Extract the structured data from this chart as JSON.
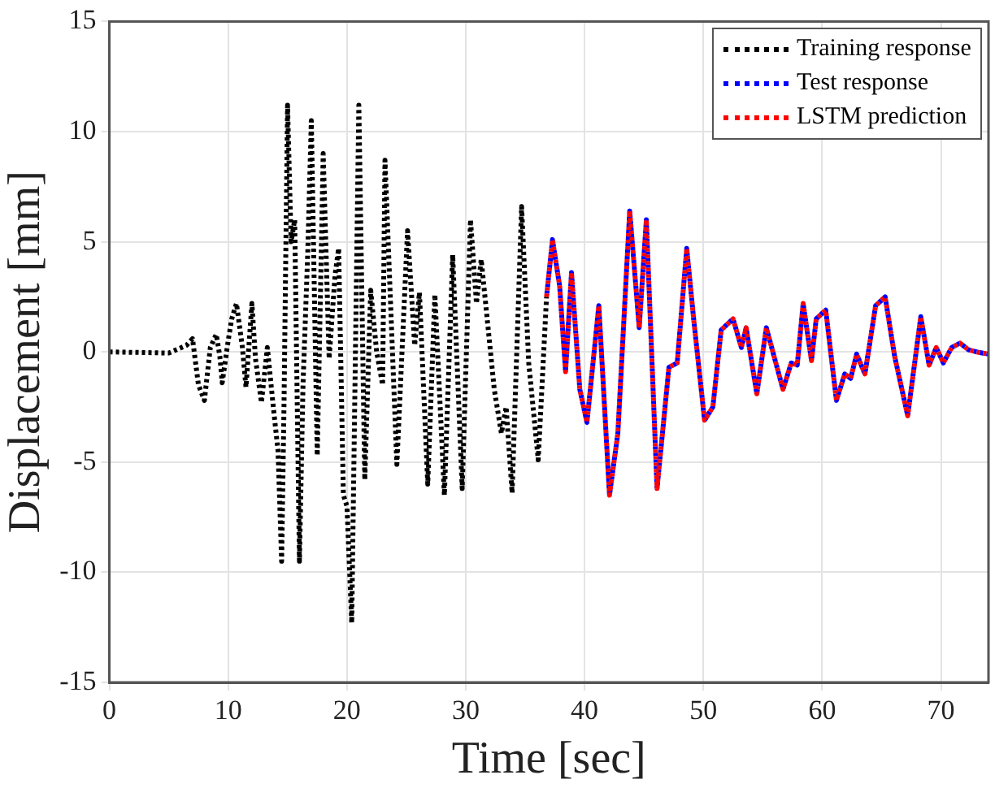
{
  "chart_data": {
    "type": "line",
    "xlabel": "Time [sec]",
    "ylabel": "Displacement [mm]",
    "xlim": [
      0,
      74
    ],
    "xticks": [
      0,
      10,
      20,
      30,
      40,
      50,
      60,
      70
    ],
    "ylim": [
      -15,
      15
    ],
    "yticks": [
      -15,
      -10,
      -5,
      0,
      5,
      10,
      15
    ],
    "grid": true,
    "legend": "top right",
    "marker": "none",
    "line_style": "dotted",
    "series": [
      {
        "name": "Training response",
        "color": "#000000",
        "x": [
          0,
          5,
          6.5,
          7,
          7.5,
          8,
          8.5,
          9,
          9.3,
          9.5,
          10,
          10.3,
          10.7,
          11.2,
          11.5,
          12,
          12.3,
          12.8,
          13.3,
          13.8,
          14.2,
          14.5,
          14.7,
          15,
          15.3,
          15.6,
          16,
          16.3,
          16.7,
          17,
          17.5,
          18,
          18.5,
          19,
          19.3,
          19.7,
          20,
          20.4,
          21,
          21.5,
          22,
          22.5,
          23,
          23.2,
          24.2,
          25.1,
          25.7,
          26.1,
          26.8,
          27.4,
          28.2,
          28.9,
          29.7,
          30.4,
          30.9,
          31.3,
          32.4,
          33,
          33.4,
          33.9,
          34.7,
          35.3,
          36.1,
          36.8
        ],
        "values": [
          0,
          -0.05,
          0.3,
          0.6,
          -1.5,
          -2.2,
          0.2,
          0.8,
          -0.2,
          -1.4,
          0.5,
          1.5,
          2.2,
          0.2,
          -1.6,
          2.2,
          -0.3,
          -2.3,
          0.2,
          -2.5,
          -4.5,
          -9.5,
          -2.5,
          11.2,
          5,
          6,
          -9.5,
          -1.5,
          4.5,
          10.5,
          -4.7,
          9,
          -0.3,
          3.5,
          4.7,
          -6.5,
          -7,
          -12.3,
          11.2,
          -5.8,
          2.8,
          0,
          -1.5,
          8.7,
          -5.1,
          5.5,
          0.3,
          2.7,
          -6,
          2.6,
          -6.5,
          4.4,
          -6.2,
          6,
          2.2,
          4.2,
          -1.7,
          -3.7,
          -2.5,
          -6.4,
          6.6,
          -0.5,
          -4.9,
          2.5
        ]
      },
      {
        "name": "Test response",
        "color": "#0000ff",
        "x": [
          36.8,
          37.3,
          37.9,
          38.4,
          38.9,
          39.6,
          40.2,
          41.2,
          42.1,
          42.8,
          43.8,
          44.6,
          45.2,
          46.1,
          47.1,
          47.8,
          48.6,
          49.2,
          50.1,
          50.8,
          51.5,
          52.5,
          53.2,
          53.6,
          54.5,
          55.3,
          56.7,
          57.4,
          57.9,
          58.4,
          59.1,
          59.5,
          60.3,
          61.2,
          61.9,
          62.4,
          62.9,
          63.6,
          64.5,
          65.3,
          66.1,
          67.2,
          68.3,
          69,
          69.6,
          70.2,
          70.9,
          71.6,
          72.3,
          73,
          74
        ],
        "values": [
          2.5,
          5.1,
          3,
          -0.9,
          3.6,
          -1.7,
          -3.2,
          2.1,
          -6.5,
          -3.7,
          6.4,
          1.1,
          6,
          -6.2,
          -0.7,
          -0.5,
          4.7,
          1.4,
          -3.1,
          -2.5,
          1,
          1.5,
          0.2,
          1.1,
          -1.9,
          1.1,
          -1.7,
          -0.5,
          -0.6,
          2.2,
          -0.4,
          1.5,
          1.9,
          -2.2,
          -1,
          -1.2,
          -0.1,
          -1,
          2.1,
          2.5,
          -0.2,
          -2.9,
          1.6,
          -0.6,
          0.2,
          -0.5,
          0.2,
          0.4,
          0.1,
          0,
          -0.1
        ]
      },
      {
        "name": "LSTM prediction",
        "color": "#ff0000",
        "x": [
          36.8,
          37.3,
          37.9,
          38.4,
          38.9,
          39.6,
          40.2,
          41.2,
          42.1,
          42.8,
          43.8,
          44.6,
          45.2,
          46.1,
          47.1,
          47.8,
          48.6,
          49.2,
          50.1,
          50.8,
          51.5,
          52.5,
          53.2,
          53.6,
          54.5,
          55.3,
          56.7,
          57.4,
          57.9,
          58.4,
          59.1,
          59.5,
          60.3,
          61.2,
          61.9,
          62.4,
          62.9,
          63.6,
          64.5,
          65.3,
          66.1,
          67.2,
          68.3,
          69,
          69.6,
          70.2,
          70.9,
          71.6,
          72.3,
          73,
          74
        ],
        "values": [
          2.5,
          5.1,
          3,
          -0.9,
          3.6,
          -1.7,
          -3.2,
          2.1,
          -6.5,
          -3.7,
          6.4,
          1.1,
          6,
          -6.2,
          -0.7,
          -0.5,
          4.7,
          1.4,
          -3.1,
          -2.5,
          1,
          1.5,
          0.2,
          1.1,
          -1.9,
          1.1,
          -1.7,
          -0.5,
          -0.6,
          2.2,
          -0.4,
          1.5,
          1.9,
          -2.2,
          -1,
          -1.2,
          -0.1,
          -1,
          2.1,
          2.5,
          -0.2,
          -2.9,
          1.6,
          -0.6,
          0.2,
          -0.5,
          0.2,
          0.4,
          0.1,
          0,
          -0.1
        ]
      }
    ]
  }
}
